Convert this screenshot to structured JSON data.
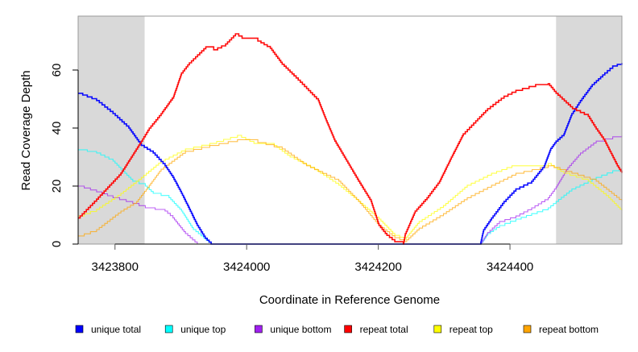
{
  "chart_data": {
    "type": "line",
    "title": "",
    "xlabel": "Coordinate in Reference Genome",
    "ylabel": "Read Coverage Depth",
    "xlim": [
      3423744,
      3424570
    ],
    "ylim": [
      0,
      78.6
    ],
    "xticks": [
      3423800,
      3424000,
      3424200,
      3424400
    ],
    "xtick_labels": [
      "3423800",
      "3424000",
      "3424200",
      "3424400"
    ],
    "yticks": [
      0,
      20,
      40,
      60
    ],
    "ytick_labels": [
      "0",
      "20",
      "40",
      "60"
    ],
    "shaded_regions": [
      [
        3423744,
        3423845
      ],
      [
        3424470,
        3424570
      ]
    ],
    "legend_position": "bottom",
    "series": [
      {
        "name": "unique total",
        "color": "#0000ff",
        "x": [
          3423744,
          3423772,
          3423797,
          3423821,
          3423840,
          3423858,
          3423876,
          3423888,
          3423901,
          3423913,
          3423925,
          3423937,
          3423946,
          3424355,
          3424360,
          3424372,
          3424391,
          3424409,
          3424433,
          3424452,
          3424462,
          3424470,
          3424482,
          3424494,
          3424507,
          3424525,
          3424544,
          3424556,
          3424570
        ],
        "y": [
          52,
          49.5,
          45,
          40,
          34,
          31.4,
          27,
          23,
          17.5,
          12,
          6.4,
          2,
          0,
          0,
          5,
          9,
          14.7,
          19,
          21.7,
          27,
          33,
          35.5,
          38,
          45,
          49.5,
          55,
          59,
          61.4,
          62.5
        ]
      },
      {
        "name": "unique top",
        "color": "#00ffff",
        "x": [
          3423744,
          3423772,
          3423797,
          3423815,
          3423827,
          3423846,
          3423858,
          3423882,
          3423901,
          3423919,
          3423946,
          3424355,
          3424366,
          3424384,
          3424409,
          3424433,
          3424458,
          3424470,
          3424494,
          3424531,
          3424556,
          3424570
        ],
        "y": [
          32.5,
          31.4,
          28.6,
          24.4,
          21.7,
          20,
          17.5,
          16,
          11.4,
          5,
          0,
          0,
          3.6,
          6.4,
          8.6,
          10.5,
          12.5,
          14.7,
          19,
          23,
          25.3,
          25.3
        ]
      },
      {
        "name": "unique bottom",
        "color": "#a020f0",
        "x": [
          3423744,
          3423772,
          3423797,
          3423827,
          3423846,
          3423876,
          3423888,
          3423907,
          3423925,
          3424355,
          3424366,
          3424384,
          3424409,
          3424433,
          3424458,
          3424470,
          3424488,
          3424507,
          3424531,
          3424556,
          3424570
        ],
        "y": [
          20,
          18,
          16,
          14,
          12.5,
          11.4,
          9,
          3.6,
          0,
          0,
          4,
          7.8,
          9.7,
          12.5,
          16,
          19.7,
          26.4,
          31.4,
          35.5,
          37,
          37.5
        ]
      },
      {
        "name": "repeat total",
        "color": "#ff0000",
        "x": [
          3423744,
          3423772,
          3423809,
          3423840,
          3423852,
          3423870,
          3423889,
          3423901,
          3423913,
          3423938,
          3423950,
          3423968,
          3423983,
          3423993,
          3424017,
          3424036,
          3424054,
          3424072,
          3424091,
          3424109,
          3424121,
          3424134,
          3424152,
          3424170,
          3424189,
          3424201,
          3424213,
          3424225,
          3424238,
          3424241,
          3424256,
          3424274,
          3424293,
          3424311,
          3424329,
          3424348,
          3424366,
          3424391,
          3424409,
          3424439,
          3424458,
          3424470,
          3424495,
          3424519,
          3424531,
          3424544,
          3424563,
          3424570
        ],
        "y": [
          9,
          15.5,
          24.5,
          35.5,
          40,
          45,
          51,
          59,
          62.5,
          68,
          67,
          69,
          72.5,
          71,
          70,
          67.5,
          62,
          58,
          53.6,
          49.4,
          42.5,
          35.5,
          28.6,
          21.7,
          14.7,
          6.4,
          3,
          0.8,
          0,
          3.6,
          11.4,
          16,
          21.7,
          30,
          38,
          42.5,
          46.7,
          51,
          53,
          55,
          55.3,
          52,
          46.7,
          44,
          39.7,
          35.5,
          27,
          24.5
        ]
      },
      {
        "name": "repeat top",
        "color": "#ffff00",
        "x": [
          3423744,
          3423772,
          3423809,
          3423840,
          3423870,
          3423907,
          3423944,
          3423986,
          3424011,
          3424042,
          3424066,
          3424103,
          3424140,
          3424170,
          3424201,
          3424225,
          3424240,
          3424262,
          3424299,
          3424335,
          3424372,
          3424403,
          3424458,
          3424482,
          3424519,
          3424550,
          3424570
        ],
        "y": [
          9.7,
          12,
          17.5,
          23,
          28.6,
          32.8,
          34.7,
          37.5,
          34.7,
          34,
          30,
          25.8,
          20.3,
          14.7,
          8.6,
          3,
          1.7,
          7.8,
          13.3,
          20.3,
          24.4,
          27,
          27.8,
          24.4,
          21.7,
          16,
          11.4
        ]
      },
      {
        "name": "repeat bottom",
        "color": "#ffa500",
        "x": [
          3423744,
          3423772,
          3423809,
          3423833,
          3423852,
          3423870,
          3423907,
          3423944,
          3423986,
          3424017,
          3424054,
          3424091,
          3424140,
          3424170,
          3424201,
          3424225,
          3424240,
          3424262,
          3424299,
          3424335,
          3424372,
          3424409,
          3424458,
          3424494,
          3424531,
          3424570
        ],
        "y": [
          2.8,
          5,
          11.4,
          14.7,
          20.3,
          25.8,
          32,
          34,
          36,
          35,
          32.8,
          27,
          21.7,
          14.7,
          6.4,
          2.2,
          0.8,
          5.5,
          10.5,
          16,
          20.3,
          24.4,
          27,
          24.4,
          21.7,
          14.7
        ]
      }
    ]
  }
}
